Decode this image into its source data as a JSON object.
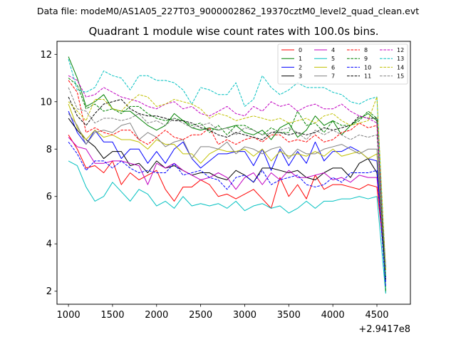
{
  "chart_data": {
    "type": "line",
    "suptitle": "Data file: modeM0/AS1A05_227T03_9000002862_19370cztM0_level2_quad_clean.evt",
    "title": "Quadrant 1 module wise count rates with 100.0s bins.",
    "xlabel": "",
    "ylabel": "",
    "x_offset_label": "+2.9417e8",
    "xlim": [
      870,
      4880
    ],
    "ylim": [
      1.45,
      12.55
    ],
    "xticks": [
      1000,
      1500,
      2000,
      2500,
      3000,
      3500,
      4000,
      4500
    ],
    "yticks": [
      2,
      4,
      6,
      8,
      10,
      12
    ],
    "x": [
      1000,
      1100,
      1200,
      1300,
      1400,
      1500,
      1600,
      1700,
      1800,
      1900,
      2000,
      2100,
      2200,
      2300,
      2400,
      2500,
      2600,
      2700,
      2800,
      2900,
      3000,
      3100,
      3200,
      3300,
      3400,
      3500,
      3600,
      3700,
      3800,
      3900,
      4000,
      4100,
      4200,
      4300,
      4400,
      4500,
      4600
    ],
    "legend_location": "top-right",
    "series": [
      {
        "name": "0",
        "color": "#ff0000",
        "dashed": false,
        "values": [
          8.6,
          8.0,
          7.2,
          7.3,
          7.0,
          7.5,
          6.5,
          7.0,
          6.7,
          6.9,
          7.1,
          6.3,
          5.8,
          6.4,
          6.4,
          6.7,
          6.5,
          6.0,
          6.1,
          5.9,
          6.1,
          6.3,
          5.9,
          5.5,
          6.8,
          6.0,
          6.5,
          5.9,
          6.9,
          6.3,
          6.5,
          6.5,
          6.4,
          6.3,
          6.5,
          6.4,
          2.9
        ]
      },
      {
        "name": "1",
        "color": "#008000",
        "dashed": false,
        "values": [
          11.9,
          11.0,
          9.8,
          10.0,
          10.3,
          9.7,
          9.6,
          9.6,
          9.3,
          9.0,
          8.8,
          9.0,
          9.5,
          9.2,
          8.9,
          8.8,
          8.9,
          8.8,
          8.9,
          9.0,
          8.7,
          8.6,
          8.8,
          8.4,
          8.9,
          9.1,
          8.5,
          8.8,
          9.4,
          9.0,
          9.2,
          8.6,
          9.0,
          9.3,
          9.5,
          9.2,
          1.95
        ]
      },
      {
        "name": "2",
        "color": "#0000ff",
        "dashed": false,
        "values": [
          9.6,
          8.7,
          8.2,
          8.8,
          8.3,
          8.3,
          7.6,
          8.0,
          8.0,
          7.4,
          7.9,
          7.4,
          8.0,
          8.3,
          7.6,
          7.2,
          7.5,
          7.8,
          7.8,
          7.9,
          7.9,
          7.3,
          8.0,
          7.1,
          8.0,
          7.3,
          7.9,
          7.4,
          8.3,
          7.5,
          7.9,
          7.9,
          8.1,
          7.9,
          7.6,
          7.5,
          2.4
        ]
      },
      {
        "name": "3",
        "color": "#000000",
        "dashed": false,
        "values": [
          9.3,
          8.8,
          8.4,
          8.1,
          7.6,
          7.9,
          7.9,
          7.3,
          7.4,
          7.0,
          7.5,
          7.2,
          7.3,
          7.1,
          6.9,
          7.0,
          7.0,
          6.8,
          6.7,
          7.1,
          6.9,
          6.6,
          7.2,
          7.2,
          7.1,
          7.0,
          7.1,
          6.8,
          6.7,
          7.0,
          7.2,
          7.2,
          6.8,
          7.4,
          7.6,
          7.0,
          2.6
        ]
      },
      {
        "name": "4",
        "color": "#c000c0",
        "dashed": false,
        "values": [
          8.5,
          8.1,
          8.0,
          7.4,
          7.4,
          7.5,
          7.5,
          7.4,
          7.3,
          6.5,
          7.4,
          7.2,
          7.4,
          7.1,
          6.9,
          6.7,
          6.8,
          7.0,
          6.8,
          6.3,
          6.8,
          7.0,
          6.5,
          7.0,
          6.7,
          7.1,
          6.8,
          6.8,
          6.9,
          7.0,
          6.7,
          6.8,
          6.6,
          6.9,
          6.8,
          6.8,
          3.0
        ]
      },
      {
        "name": "5",
        "color": "#00c0c0",
        "dashed": false,
        "values": [
          7.5,
          7.3,
          6.4,
          5.8,
          6.0,
          6.6,
          6.2,
          5.8,
          6.3,
          6.1,
          5.6,
          5.8,
          5.5,
          6.0,
          5.6,
          5.7,
          5.6,
          5.7,
          5.5,
          5.8,
          5.4,
          5.6,
          5.7,
          5.5,
          5.6,
          5.3,
          5.5,
          5.8,
          5.5,
          5.8,
          5.8,
          5.9,
          5.9,
          6.0,
          5.9,
          6.0,
          1.9
        ]
      },
      {
        "name": "6",
        "color": "#c0c000",
        "dashed": false,
        "values": [
          9.9,
          8.9,
          8.4,
          8.8,
          8.5,
          8.6,
          8.4,
          8.4,
          8.3,
          8.0,
          8.4,
          8.2,
          8.2,
          7.8,
          7.8,
          7.4,
          7.8,
          8.0,
          7.9,
          7.9,
          8.0,
          7.7,
          8.0,
          7.5,
          7.9,
          7.7,
          7.8,
          7.7,
          7.9,
          7.7,
          8.0,
          7.7,
          7.8,
          7.9,
          7.6,
          7.8,
          2.7
        ]
      },
      {
        "name": "7",
        "color": "#808080",
        "dashed": false,
        "values": [
          9.5,
          9.0,
          8.2,
          8.7,
          8.8,
          8.7,
          9.0,
          9.1,
          8.4,
          8.7,
          8.5,
          8.1,
          8.3,
          8.4,
          7.6,
          8.1,
          8.1,
          8.0,
          8.3,
          7.8,
          8.1,
          8.0,
          7.8,
          8.0,
          8.1,
          7.6,
          8.0,
          7.8,
          7.8,
          8.0,
          8.1,
          8.2,
          8.0,
          7.8,
          8.0,
          8.0,
          3.0
        ]
      },
      {
        "name": "8",
        "color": "#ff0000",
        "dashed": true,
        "values": [
          10.9,
          10.4,
          8.7,
          8.9,
          8.7,
          8.6,
          8.8,
          8.8,
          8.4,
          8.2,
          8.5,
          8.8,
          8.5,
          8.4,
          8.6,
          8.6,
          8.9,
          8.2,
          8.4,
          8.2,
          8.4,
          8.5,
          8.3,
          8.6,
          8.6,
          8.3,
          8.4,
          8.3,
          8.6,
          8.3,
          8.4,
          8.7,
          8.8,
          9.1,
          8.9,
          9.0,
          2.9
        ]
      },
      {
        "name": "9",
        "color": "#008000",
        "dashed": true,
        "values": [
          11.0,
          10.7,
          9.7,
          9.9,
          9.6,
          9.7,
          9.5,
          9.8,
          9.8,
          9.5,
          9.3,
          9.2,
          9.3,
          9.2,
          9.0,
          9.1,
          8.7,
          9.0,
          8.6,
          9.0,
          9.0,
          8.8,
          8.6,
          8.9,
          8.7,
          8.7,
          9.6,
          9.0,
          9.1,
          8.7,
          9.2,
          9.0,
          9.0,
          9.2,
          9.6,
          9.3,
          2.0
        ]
      },
      {
        "name": "10",
        "color": "#0000ff",
        "dashed": true,
        "values": [
          8.3,
          7.8,
          7.1,
          7.5,
          7.5,
          7.2,
          7.5,
          7.2,
          7.0,
          7.1,
          7.0,
          7.0,
          7.4,
          6.9,
          7.0,
          7.1,
          6.8,
          6.7,
          6.3,
          6.8,
          6.9,
          6.6,
          7.1,
          6.5,
          6.7,
          6.8,
          6.9,
          6.5,
          6.4,
          6.5,
          6.8,
          6.6,
          7.0,
          7.0,
          7.0,
          7.1,
          2.2
        ]
      },
      {
        "name": "11",
        "color": "#000000",
        "dashed": true,
        "values": [
          10.2,
          9.4,
          9.0,
          9.5,
          9.9,
          10.0,
          10.1,
          9.7,
          9.5,
          9.4,
          9.4,
          9.3,
          9.2,
          9.2,
          9.1,
          8.9,
          8.8,
          8.6,
          8.5,
          8.7,
          8.6,
          8.5,
          8.4,
          8.7,
          8.7,
          8.6,
          8.7,
          8.6,
          8.7,
          8.9,
          8.8,
          8.9,
          9.0,
          9.4,
          9.3,
          9.3,
          2.5
        ]
      },
      {
        "name": "12",
        "color": "#c000c0",
        "dashed": true,
        "values": [
          11.1,
          10.9,
          10.2,
          10.3,
          10.6,
          10.4,
          10.2,
          10.1,
          10.0,
          9.8,
          9.7,
          9.9,
          10.0,
          9.7,
          9.8,
          9.5,
          9.4,
          9.6,
          9.8,
          9.5,
          9.4,
          9.8,
          9.6,
          10.0,
          9.8,
          9.9,
          9.6,
          9.8,
          9.9,
          9.7,
          9.7,
          9.9,
          9.6,
          9.4,
          9.3,
          9.1,
          3.0
        ]
      },
      {
        "name": "13",
        "color": "#00c0c0",
        "dashed": true,
        "values": [
          11.8,
          10.5,
          10.4,
          10.6,
          11.3,
          11.1,
          11.0,
          10.5,
          11.1,
          11.1,
          10.9,
          10.9,
          10.8,
          10.5,
          9.9,
          10.6,
          10.5,
          10.3,
          10.3,
          10.8,
          9.8,
          10.1,
          11.1,
          10.6,
          10.3,
          10.5,
          10.8,
          10.6,
          10.6,
          10.6,
          10.4,
          10.3,
          10.0,
          9.9,
          10.1,
          10.2,
          2.6
        ]
      },
      {
        "name": "14",
        "color": "#c0c000",
        "dashed": true,
        "values": [
          10.0,
          9.6,
          9.2,
          10.1,
          10.1,
          9.7,
          9.6,
          10.0,
          10.3,
          10.2,
          9.8,
          9.9,
          10.1,
          10.0,
          9.9,
          9.7,
          9.3,
          9.5,
          9.4,
          9.2,
          9.3,
          9.4,
          9.3,
          9.2,
          9.3,
          9.1,
          9.2,
          9.3,
          9.1,
          9.4,
          9.5,
          9.2,
          9.0,
          9.1,
          9.2,
          10.2,
          2.9
        ]
      },
      {
        "name": "15",
        "color": "#808080",
        "dashed": true,
        "values": [
          10.6,
          9.7,
          9.6,
          9.1,
          9.3,
          9.3,
          9.2,
          9.3,
          9.5,
          9.1,
          9.2,
          9.0,
          9.3,
          9.1,
          8.9,
          9.0,
          9.1,
          8.8,
          8.9,
          8.6,
          8.9,
          8.8,
          8.6,
          8.7,
          8.8,
          8.9,
          8.7,
          8.4,
          8.8,
          8.6,
          8.8,
          8.6,
          8.4,
          8.6,
          8.5,
          8.6,
          3.0
        ]
      }
    ]
  }
}
